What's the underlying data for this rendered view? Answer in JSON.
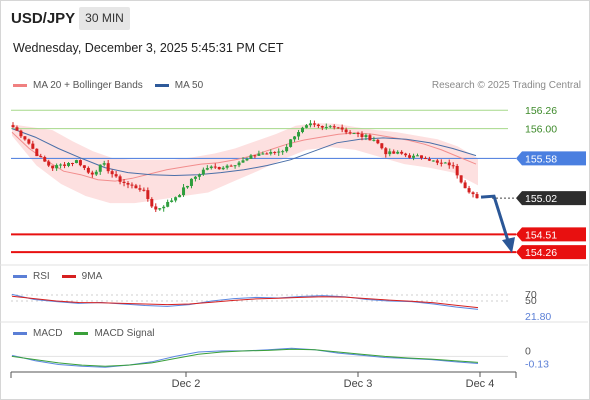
{
  "header": {
    "symbol": "USD/JPY",
    "timeframe": "30 MIN",
    "datetime": "Wednesday, December 3, 2025 5:45:31 PM CET",
    "credit": "Research © 2025 Trading Central"
  },
  "main_legend": [
    {
      "label": "MA 20 + Bollinger Bands",
      "color": "#f08080"
    },
    {
      "label": "MA 50",
      "color": "#2e5a9a"
    }
  ],
  "rsi_legend": [
    {
      "label": "RSI",
      "color": "#5b7fd6"
    },
    {
      "label": "9MA",
      "color": "#d62020"
    }
  ],
  "macd_legend": [
    {
      "label": "MACD",
      "color": "#5b7fd6"
    },
    {
      "label": "MACD Signal",
      "color": "#3aa03a"
    }
  ],
  "colors": {
    "candle_up": "#2e9e3e",
    "candle_down": "#d42020",
    "bollinger_fill": "#fde0e0",
    "ma20": "#f28d8d",
    "ma50": "#4a6fa8",
    "resistance_line": "#a6d88a",
    "pivot_line": "#5b87e0",
    "support_line": "#e81010",
    "forecast_arrow": "#2b5797"
  },
  "chart_data": [
    {
      "type": "candlestick",
      "title": "USD/JPY",
      "x_ticks": [
        "Dec 2",
        "Dec 3",
        "Dec 4"
      ],
      "ylim": [
        154.12,
        156.46
      ],
      "levels": [
        {
          "value": 156.26,
          "label": "156.26",
          "kind": "resistance"
        },
        {
          "value": 156.0,
          "label": "156.00",
          "kind": "resistance"
        },
        {
          "value": 155.58,
          "label": "155.58",
          "kind": "pivot"
        },
        {
          "value": 155.02,
          "label": "155.02",
          "kind": "last_price"
        },
        {
          "value": 154.51,
          "label": "154.51",
          "kind": "support"
        },
        {
          "value": 154.26,
          "label": "154.26",
          "kind": "support"
        }
      ],
      "forecast": {
        "from": 155.02,
        "to": 154.26,
        "direction": "down"
      },
      "close_path": [
        156.02,
        155.85,
        155.6,
        155.45,
        155.5,
        155.55,
        155.35,
        155.5,
        155.3,
        155.2,
        155.15,
        154.85,
        154.95,
        155.1,
        155.3,
        155.45,
        155.45,
        155.5,
        155.55,
        155.65,
        155.65,
        155.7,
        155.95,
        156.05,
        156.0,
        156.05,
        155.95,
        155.9,
        155.85,
        155.65,
        155.65,
        155.6,
        155.6,
        155.5,
        155.5,
        155.2,
        155.02
      ],
      "ma20_path": [
        155.95,
        155.72,
        155.55,
        155.4,
        155.35,
        155.28,
        155.26,
        155.3,
        155.36,
        155.42,
        155.46,
        155.5,
        155.52,
        155.56,
        155.62,
        155.7,
        155.78,
        155.84,
        155.88,
        155.92,
        155.94,
        155.92,
        155.88,
        155.84,
        155.78,
        155.7,
        155.6,
        155.5
      ],
      "bb_upper_path": [
        156.06,
        156.02,
        155.98,
        155.82,
        155.68,
        155.58,
        155.56,
        155.56,
        155.56,
        155.6,
        155.65,
        155.72,
        155.82,
        155.92,
        156.04,
        156.08,
        156.07,
        156.02,
        155.98,
        155.95,
        155.9,
        155.85,
        155.75,
        155.58
      ],
      "bb_lower_path": [
        155.9,
        155.48,
        155.22,
        155.05,
        154.95,
        154.95,
        155.0,
        155.05,
        155.1,
        155.25,
        155.4,
        155.56,
        155.7,
        155.74,
        155.7,
        155.6,
        155.5,
        155.45,
        155.38,
        155.2
      ],
      "ma50_path": [
        156.0,
        155.88,
        155.72,
        155.58,
        155.45,
        155.38,
        155.35,
        155.34,
        155.35,
        155.38,
        155.42,
        155.48,
        155.56,
        155.68,
        155.8,
        155.85,
        155.87,
        155.85,
        155.8,
        155.72,
        155.62
      ]
    },
    {
      "type": "line",
      "title": "RSI",
      "ylim": [
        0,
        100
      ],
      "levels": [
        {
          "value": 70,
          "label": "70"
        },
        {
          "value": 50,
          "label": "50"
        }
      ],
      "last_value_label": "21.80",
      "series": [
        {
          "name": "RSI",
          "values": [
            72,
            55,
            48,
            42,
            45,
            40,
            35,
            32,
            38,
            50,
            58,
            62,
            60,
            65,
            68,
            64,
            55,
            50,
            48,
            40,
            30,
            22
          ]
        },
        {
          "name": "9MA",
          "values": [
            66,
            58,
            50,
            45,
            44,
            42,
            40,
            38,
            40,
            46,
            52,
            57,
            59,
            62,
            64,
            63,
            58,
            53,
            49,
            44,
            36,
            28
          ]
        }
      ]
    },
    {
      "type": "line",
      "title": "MACD",
      "zero_label": "0",
      "last_value_label": "-0.13",
      "series": [
        {
          "name": "MACD",
          "values": [
            0.02,
            -0.08,
            -0.15,
            -0.18,
            -0.2,
            -0.16,
            -0.1,
            0.0,
            0.08,
            0.1,
            0.1,
            0.12,
            0.15,
            0.12,
            0.06,
            0.02,
            -0.02,
            -0.04,
            -0.06,
            -0.1,
            -0.13
          ]
        },
        {
          "name": "MACD Signal",
          "values": [
            0.0,
            -0.06,
            -0.12,
            -0.16,
            -0.18,
            -0.16,
            -0.12,
            -0.04,
            0.04,
            0.08,
            0.1,
            0.11,
            0.13,
            0.12,
            0.08,
            0.04,
            0.0,
            -0.03,
            -0.05,
            -0.08,
            -0.11
          ]
        }
      ]
    }
  ]
}
